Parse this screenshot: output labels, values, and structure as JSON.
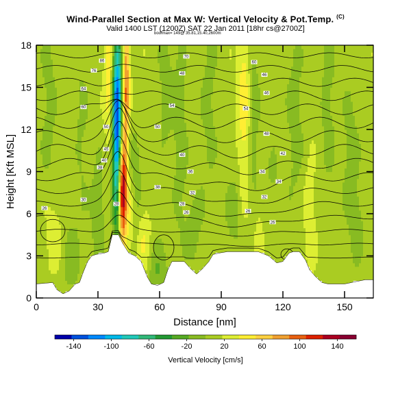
{
  "chart_data": {
    "type": "heatmap",
    "title": "Wind-Parallel Section at Max W: Vertical Velocity & Pot.Temp.",
    "title_mark": "(C)",
    "subtitle": "Valid 1400 LST (1200Z) SAT 22 Jan 2011 [18hr cs@2700Z]",
    "subline": "boofmax= 149@ 35.81,15.40,2600m",
    "xlabel": "Distance [nm]",
    "ylabel": "Height [Kft MSL]",
    "xlim": [
      0,
      164
    ],
    "ylim": [
      0,
      18
    ],
    "xticks": [
      0,
      30,
      60,
      90,
      120,
      150
    ],
    "yticks": [
      0,
      3,
      6,
      9,
      12,
      15,
      18
    ],
    "colorbar": {
      "label": "Vertical Velocity [cm/s]",
      "ticks": [
        -140,
        -100,
        -60,
        -20,
        20,
        60,
        100,
        140
      ],
      "range": [
        -160,
        160
      ],
      "colors": [
        "#0000aa",
        "#0050dd",
        "#0088ff",
        "#00b8e8",
        "#20c8b8",
        "#30b878",
        "#229933",
        "#55aa22",
        "#88bb22",
        "#aacc22",
        "#ddee33",
        "#ffee33",
        "#ffd040",
        "#f0a030",
        "#e86010",
        "#dd2000",
        "#aa0020",
        "#880030"
      ]
    },
    "terrain": [
      [
        0,
        1.0
      ],
      [
        8,
        1.1
      ],
      [
        10,
        0.6
      ],
      [
        13,
        0.3
      ],
      [
        16,
        0.5
      ],
      [
        19,
        1.0
      ],
      [
        21,
        1.1
      ],
      [
        23,
        1.9
      ],
      [
        25,
        2.6
      ],
      [
        27,
        3.0
      ],
      [
        29,
        3.1
      ],
      [
        33,
        3.2
      ],
      [
        35,
        3.3
      ],
      [
        37,
        4.5
      ],
      [
        40,
        4.5
      ],
      [
        42,
        3.9
      ],
      [
        45,
        3.2
      ],
      [
        48,
        3.0
      ],
      [
        51,
        2.6
      ],
      [
        54,
        1.5
      ],
      [
        56,
        1.0
      ],
      [
        59,
        0.9
      ],
      [
        62,
        1.1
      ],
      [
        64,
        2.0
      ],
      [
        66,
        2.6
      ],
      [
        69,
        2.6
      ],
      [
        72,
        2.6
      ],
      [
        75,
        2.1
      ],
      [
        78,
        1.7
      ],
      [
        81,
        2.1
      ],
      [
        84,
        2.6
      ],
      [
        86,
        3.1
      ],
      [
        89,
        3.2
      ],
      [
        93,
        3.3
      ],
      [
        100,
        3.3
      ],
      [
        108,
        3.3
      ],
      [
        113,
        3.0
      ],
      [
        117,
        2.5
      ],
      [
        120,
        2.6
      ],
      [
        123,
        3.2
      ],
      [
        125,
        3.3
      ],
      [
        128,
        3.3
      ],
      [
        131,
        2.7
      ],
      [
        133,
        2.0
      ],
      [
        136,
        1.5
      ],
      [
        139,
        1.1
      ],
      [
        142,
        1.0
      ],
      [
        150,
        1.0
      ],
      [
        160,
        1.3
      ],
      [
        164,
        1.3
      ]
    ],
    "w_features": [
      {
        "x": 40,
        "z": 11,
        "sx": 1.8,
        "sz": 6,
        "w": -110
      },
      {
        "x": 39,
        "z": 13,
        "sx": 1.3,
        "sz": 4,
        "w": -60
      },
      {
        "x": 41.5,
        "z": 7.5,
        "sx": 1.4,
        "sz": 2.6,
        "w": 150
      },
      {
        "x": 43,
        "z": 11,
        "sx": 1.2,
        "sz": 5,
        "w": 60
      },
      {
        "x": 44,
        "z": 16,
        "sx": 1.2,
        "sz": 3,
        "w": 55
      },
      {
        "x": 35,
        "z": 16,
        "sx": 1.4,
        "sz": 3,
        "w": 40
      },
      {
        "x": 46,
        "z": 6,
        "sx": 1.5,
        "sz": 2,
        "w": 30
      },
      {
        "x": 30,
        "z": 6,
        "sx": 2.5,
        "sz": 3,
        "w": -25
      },
      {
        "x": 48,
        "z": 8,
        "sx": 2.5,
        "sz": 3,
        "w": -25
      },
      {
        "x": 17,
        "z": 2.5,
        "sx": 3,
        "sz": 2,
        "w": -22
      },
      {
        "x": 59,
        "z": 1.8,
        "sx": 3.5,
        "sz": 1.5,
        "w": -30
      },
      {
        "x": 70,
        "z": 12,
        "sx": 2.5,
        "sz": 6,
        "w": -22
      },
      {
        "x": 63,
        "z": 15,
        "sx": 2.5,
        "sz": 3.5,
        "w": -22
      },
      {
        "x": 77,
        "z": 5,
        "sx": 3,
        "sz": 2,
        "w": -20
      },
      {
        "x": 96,
        "z": 6,
        "sx": 3,
        "sz": 2,
        "w": -22
      },
      {
        "x": 101,
        "z": 14,
        "sx": 2,
        "sz": 5,
        "w": 35
      },
      {
        "x": 106,
        "z": 13,
        "sx": 2,
        "sz": 6,
        "w": -20
      },
      {
        "x": 84,
        "z": 14,
        "sx": 3,
        "sz": 5,
        "w": -18
      },
      {
        "x": 126,
        "z": 13,
        "sx": 3,
        "sz": 5,
        "w": -20
      },
      {
        "x": 142,
        "z": 14,
        "sx": 3,
        "sz": 5,
        "w": -18
      },
      {
        "x": 153,
        "z": 10,
        "sx": 3,
        "sz": 4,
        "w": -20
      },
      {
        "x": 6,
        "z": 14,
        "sx": 3,
        "sz": 5,
        "w": -18
      },
      {
        "x": 22,
        "z": 12,
        "sx": 2.5,
        "sz": 5,
        "w": -15
      },
      {
        "x": 115,
        "z": 8,
        "sx": 3,
        "sz": 2,
        "w": -15
      },
      {
        "x": 156,
        "z": 5,
        "sx": 2.5,
        "sz": 2,
        "w": -18
      },
      {
        "x": 8,
        "z": 4.5,
        "sx": 3,
        "sz": 2,
        "w": 18
      },
      {
        "x": 52,
        "z": 4,
        "sx": 2.5,
        "sz": 2,
        "w": 25
      },
      {
        "x": 108,
        "z": 5,
        "sx": 2,
        "sz": 2,
        "w": 15
      },
      {
        "x": 133,
        "z": 6,
        "sx": 2,
        "sz": 3,
        "w": 20
      }
    ],
    "theta_levels": [
      30,
      32,
      34,
      36,
      38,
      40,
      42,
      44,
      46,
      48,
      50,
      52,
      54,
      56,
      58,
      60,
      62,
      64,
      66,
      68,
      70,
      72,
      74,
      76,
      78,
      80,
      82,
      84,
      86,
      88,
      90,
      92,
      94,
      96
    ],
    "theta_labels": [
      {
        "text": "86",
        "x": 32,
        "z": 16.9
      },
      {
        "text": "70",
        "x": 73,
        "z": 17.2
      },
      {
        "text": "60",
        "x": 106,
        "z": 16.8
      },
      {
        "text": "76",
        "x": 28,
        "z": 16.2
      },
      {
        "text": "48",
        "x": 71,
        "z": 16.0
      },
      {
        "text": "46",
        "x": 111,
        "z": 15.9
      },
      {
        "text": "64",
        "x": 23,
        "z": 14.9
      },
      {
        "text": "46",
        "x": 112,
        "z": 14.6
      },
      {
        "text": "60",
        "x": 23,
        "z": 13.6
      },
      {
        "text": "54",
        "x": 66,
        "z": 13.7
      },
      {
        "text": "54",
        "x": 102,
        "z": 13.5
      },
      {
        "text": "50",
        "x": 34,
        "z": 12.2
      },
      {
        "text": "50",
        "x": 59,
        "z": 12.2
      },
      {
        "text": "48",
        "x": 112,
        "z": 11.7
      },
      {
        "text": "45",
        "x": 34,
        "z": 10.6
      },
      {
        "text": "42",
        "x": 120,
        "z": 10.3
      },
      {
        "text": "40",
        "x": 71,
        "z": 10.2
      },
      {
        "text": "40",
        "x": 33,
        "z": 9.8
      },
      {
        "text": "38",
        "x": 31,
        "z": 9.3
      },
      {
        "text": "36",
        "x": 75,
        "z": 9.0
      },
      {
        "text": "34",
        "x": 110,
        "z": 9.0
      },
      {
        "text": "34",
        "x": 118,
        "z": 8.3
      },
      {
        "text": "38",
        "x": 59,
        "z": 7.9
      },
      {
        "text": "32",
        "x": 76,
        "z": 7.5
      },
      {
        "text": "32",
        "x": 111,
        "z": 7.2
      },
      {
        "text": "30",
        "x": 23,
        "z": 7.0
      },
      {
        "text": "28",
        "x": 39,
        "z": 6.7
      },
      {
        "text": "28",
        "x": 71,
        "z": 6.7
      },
      {
        "text": "26",
        "x": 4,
        "z": 6.4
      },
      {
        "text": "26",
        "x": 73,
        "z": 6.1
      },
      {
        "text": "26",
        "x": 103,
        "z": 6.2
      },
      {
        "text": "26",
        "x": 115,
        "z": 5.4
      }
    ]
  }
}
